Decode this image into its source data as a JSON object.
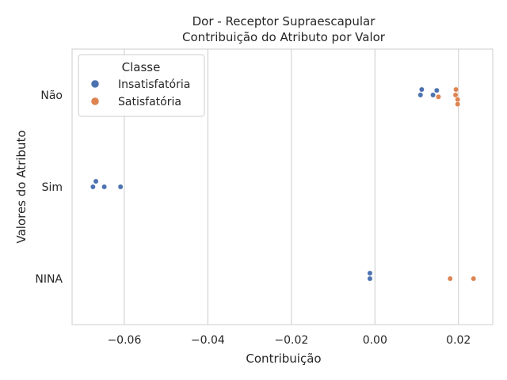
{
  "chart_data": {
    "type": "scatter",
    "title": "Dor - Receptor Supraescapular",
    "subtitle": "Contribuição do Atributo por Valor",
    "xlabel": "Contribuição",
    "ylabel": "Valores do Atributo",
    "categories": [
      "Não",
      "Sim",
      "NINA"
    ],
    "xlim": [
      -0.0725,
      0.0282
    ],
    "xticks": [
      -0.06,
      -0.04,
      -0.02,
      0.0,
      0.02
    ],
    "xtick_labels": [
      "−0.06",
      "−0.04",
      "−0.02",
      "0.00",
      "0.02"
    ],
    "grid": true,
    "legend": {
      "title": "Classe",
      "placement": "top-left"
    },
    "series": [
      {
        "name": "Insatisfatória",
        "color": "#4c72b0",
        "points": [
          {
            "category": "Não",
            "x": 0.0112,
            "jitter": -0.06
          },
          {
            "category": "Não",
            "x": 0.0109,
            "jitter": 0.0
          },
          {
            "category": "Não",
            "x": 0.0139,
            "jitter": 0.0
          },
          {
            "category": "Não",
            "x": 0.0148,
            "jitter": -0.05
          },
          {
            "category": "Sim",
            "x": -0.0668,
            "jitter": -0.06
          },
          {
            "category": "Sim",
            "x": -0.0675,
            "jitter": 0.0
          },
          {
            "category": "Sim",
            "x": -0.0648,
            "jitter": 0.0
          },
          {
            "category": "Sim",
            "x": -0.0609,
            "jitter": 0.0
          },
          {
            "category": "NINA",
            "x": -0.0012,
            "jitter": -0.06
          },
          {
            "category": "NINA",
            "x": -0.0012,
            "jitter": 0.0
          }
        ]
      },
      {
        "name": "Satisfatória",
        "color": "#dd8452",
        "points": [
          {
            "category": "Não",
            "x": 0.0194,
            "jitter": -0.06
          },
          {
            "category": "Não",
            "x": 0.0193,
            "jitter": 0.0
          },
          {
            "category": "Não",
            "x": 0.0152,
            "jitter": 0.02
          },
          {
            "category": "Não",
            "x": 0.0198,
            "jitter": 0.05
          },
          {
            "category": "Não",
            "x": 0.0198,
            "jitter": 0.1
          },
          {
            "category": "NINA",
            "x": 0.018,
            "jitter": 0.0
          },
          {
            "category": "NINA",
            "x": 0.0236,
            "jitter": 0.0
          }
        ]
      }
    ]
  }
}
